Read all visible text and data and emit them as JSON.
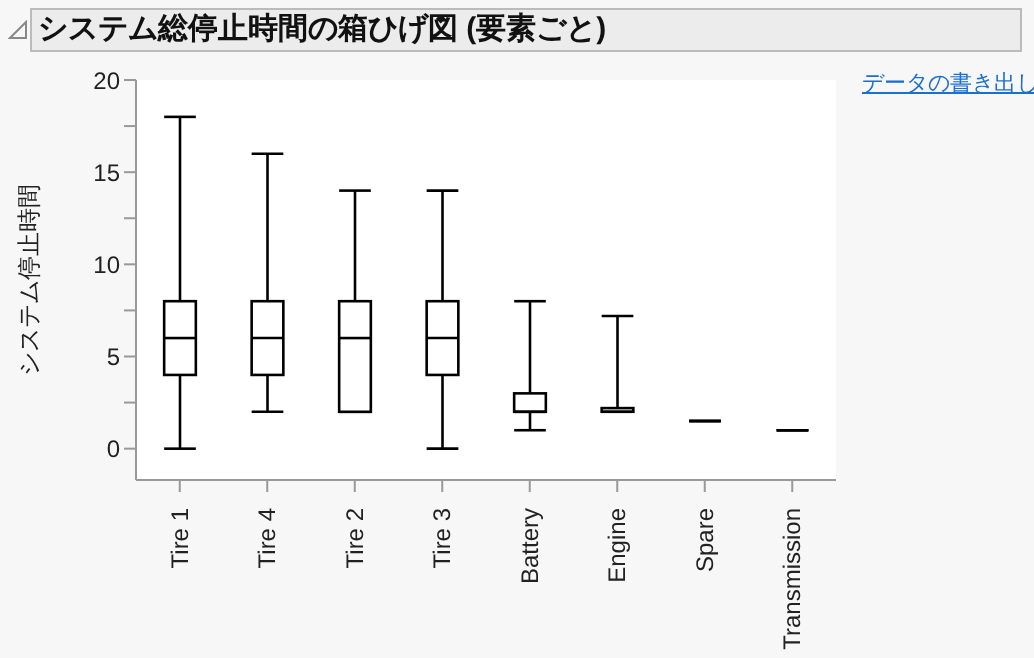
{
  "chart_data": {
    "type": "box",
    "title": "システム総停止時間の箱ひげ図 (要素ごと)",
    "ylabel": "システム停止時間",
    "annotations": [
      "データの書き出し"
    ],
    "categories": [
      "Tire 1",
      "Tire 4",
      "Tire 2",
      "Tire 3",
      "Battery",
      "Engine",
      "Spare",
      "Transmission"
    ],
    "boxes": [
      {
        "low": 0,
        "q1": 4,
        "median": 6,
        "q3": 8,
        "high": 18
      },
      {
        "low": 2,
        "q1": 4,
        "median": 6,
        "q3": 8,
        "high": 16
      },
      {
        "low": 2,
        "q1": 2,
        "median": 6,
        "q3": 8,
        "high": 14
      },
      {
        "low": 0,
        "q1": 4,
        "median": 6,
        "q3": 8,
        "high": 14
      },
      {
        "low": 1,
        "q1": 2,
        "median": 2,
        "q3": 3,
        "high": 8
      },
      {
        "low": 2,
        "q1": 2,
        "median": 2,
        "q3": 2.2,
        "high": 7.2
      },
      {
        "low": 1.5,
        "q1": 1.5,
        "median": 1.5,
        "q3": 1.5,
        "high": 1.5
      },
      {
        "low": 1,
        "q1": 1,
        "median": 1,
        "q3": 1,
        "high": 1
      }
    ],
    "color": "#000000",
    "ylim": [
      -1.7,
      20
    ],
    "yticks": [
      0,
      {
        "value": 2.5,
        "label": null
      },
      5,
      {
        "value": 7.5,
        "label": null
      },
      10,
      {
        "value": 12.5,
        "label": null
      },
      15,
      {
        "value": 17.5,
        "label": null
      },
      20
    ],
    "grid": false
  }
}
